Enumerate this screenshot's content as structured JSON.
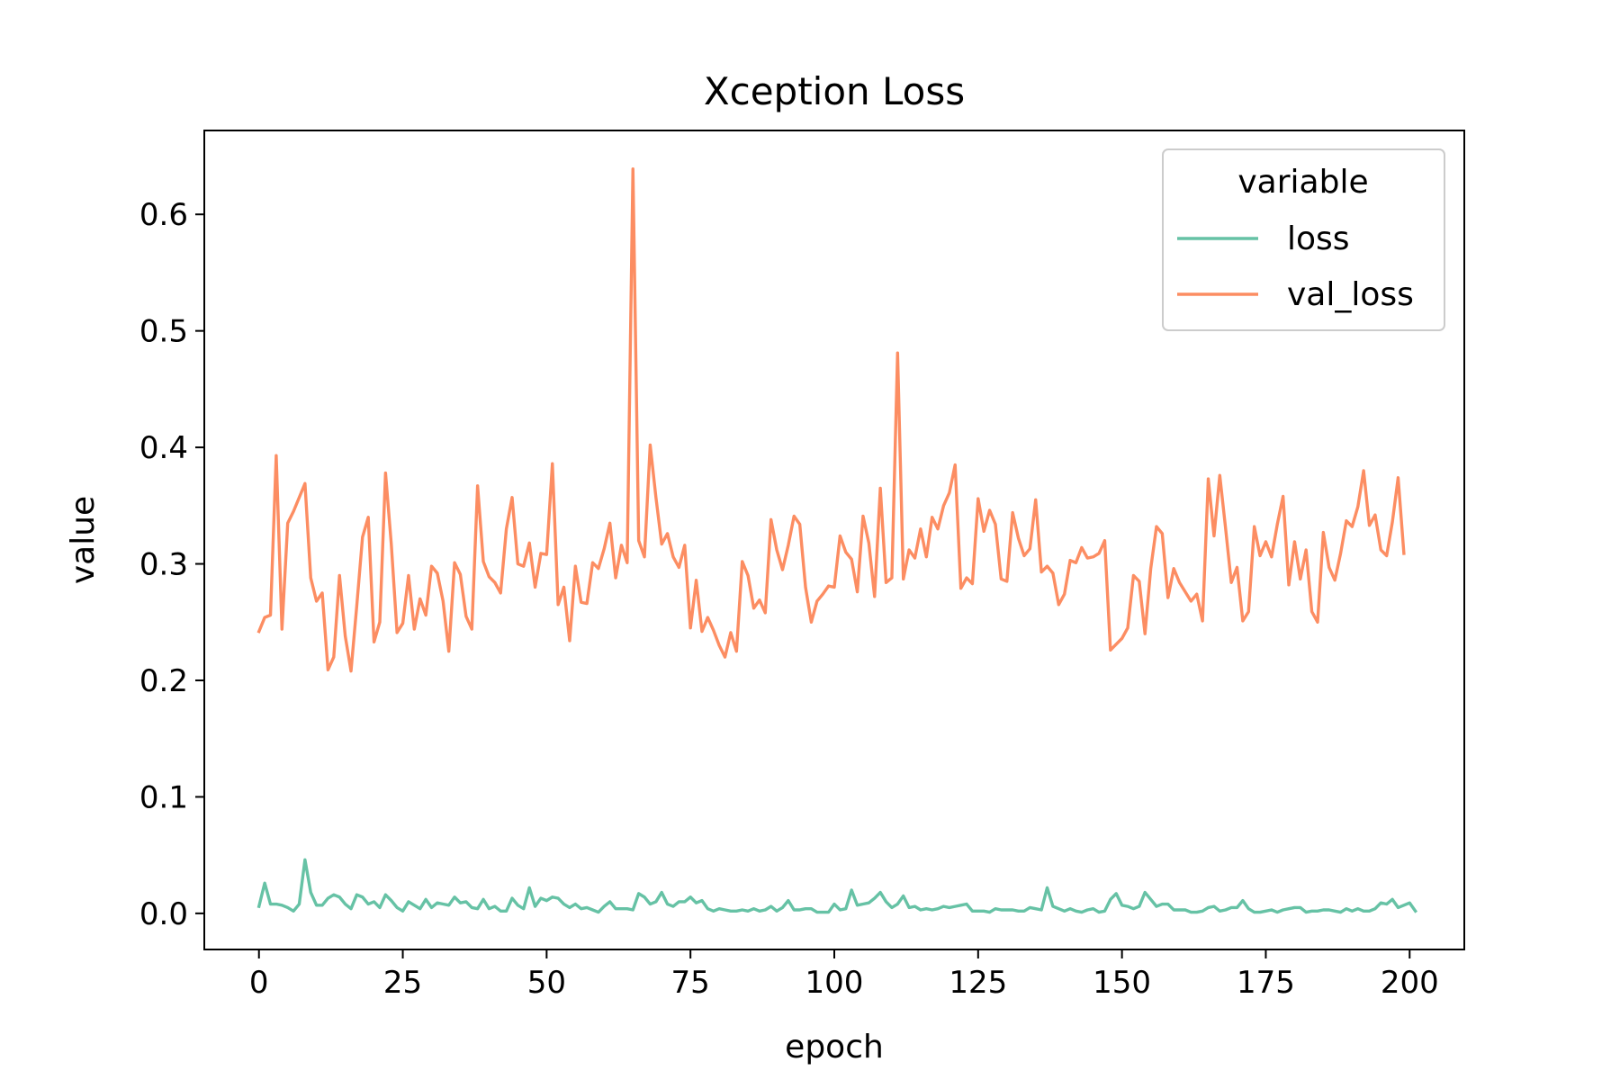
{
  "chart_data": {
    "type": "line",
    "title": "Xception Loss",
    "xlabel": "epoch",
    "ylabel": "value",
    "xlim": [
      -9.5,
      209.5
    ],
    "ylim": [
      -0.031,
      0.672
    ],
    "xticks": [
      0,
      25,
      50,
      75,
      100,
      125,
      150,
      175,
      200
    ],
    "yticks": [
      0.0,
      0.1,
      0.2,
      0.3,
      0.4,
      0.5,
      0.6
    ],
    "ytick_labels": [
      "0.0",
      "0.1",
      "0.2",
      "0.3",
      "0.4",
      "0.5",
      "0.6"
    ],
    "legend": {
      "title": "variable",
      "position": "top-right"
    },
    "series": [
      {
        "name": "loss",
        "color": "#66c2a5",
        "values": [
          0.006,
          0.026,
          0.008,
          0.008,
          0.007,
          0.005,
          0.002,
          0.008,
          0.046,
          0.018,
          0.007,
          0.007,
          0.013,
          0.016,
          0.014,
          0.008,
          0.004,
          0.016,
          0.014,
          0.008,
          0.01,
          0.005,
          0.016,
          0.011,
          0.005,
          0.002,
          0.01,
          0.007,
          0.004,
          0.012,
          0.005,
          0.009,
          0.008,
          0.007,
          0.014,
          0.009,
          0.01,
          0.005,
          0.004,
          0.012,
          0.004,
          0.006,
          0.002,
          0.002,
          0.013,
          0.007,
          0.004,
          0.022,
          0.006,
          0.013,
          0.011,
          0.014,
          0.013,
          0.008,
          0.005,
          0.008,
          0.004,
          0.005,
          0.003,
          0.001,
          0.006,
          0.01,
          0.004,
          0.004,
          0.004,
          0.003,
          0.017,
          0.014,
          0.008,
          0.01,
          0.018,
          0.008,
          0.006,
          0.01,
          0.01,
          0.014,
          0.009,
          0.011,
          0.004,
          0.002,
          0.004,
          0.003,
          0.002,
          0.002,
          0.003,
          0.002,
          0.004,
          0.002,
          0.003,
          0.006,
          0.002,
          0.005,
          0.011,
          0.003,
          0.003,
          0.004,
          0.004,
          0.001,
          0.001,
          0.001,
          0.008,
          0.003,
          0.004,
          0.02,
          0.007,
          0.008,
          0.009,
          0.013,
          0.018,
          0.01,
          0.005,
          0.008,
          0.015,
          0.005,
          0.006,
          0.003,
          0.004,
          0.003,
          0.004,
          0.006,
          0.005,
          0.006,
          0.007,
          0.008,
          0.002,
          0.002,
          0.002,
          0.001,
          0.004,
          0.003,
          0.003,
          0.003,
          0.002,
          0.002,
          0.005,
          0.004,
          0.003,
          0.022,
          0.006,
          0.004,
          0.002,
          0.004,
          0.002,
          0.001,
          0.003,
          0.004,
          0.001,
          0.002,
          0.012,
          0.017,
          0.007,
          0.006,
          0.004,
          0.006,
          0.018,
          0.012,
          0.006,
          0.008,
          0.008,
          0.003,
          0.003,
          0.003,
          0.001,
          0.001,
          0.002,
          0.005,
          0.006,
          0.002,
          0.003,
          0.005,
          0.005,
          0.011,
          0.004,
          0.001,
          0.001,
          0.002,
          0.003,
          0.001,
          0.003,
          0.004,
          0.005,
          0.005,
          0.001,
          0.002,
          0.002,
          0.003,
          0.003,
          0.002,
          0.001,
          0.004,
          0.002,
          0.004,
          0.002,
          0.002,
          0.004,
          0.009,
          0.008,
          0.012,
          0.005,
          0.007,
          0.009,
          0.002
        ]
      },
      {
        "name": "val_loss",
        "color": "#fc8d62",
        "values": [
          0.242,
          0.254,
          0.256,
          0.393,
          0.244,
          0.335,
          0.345,
          0.357,
          0.369,
          0.288,
          0.268,
          0.275,
          0.209,
          0.22,
          0.29,
          0.238,
          0.208,
          0.264,
          0.323,
          0.34,
          0.233,
          0.25,
          0.378,
          0.317,
          0.241,
          0.249,
          0.29,
          0.244,
          0.27,
          0.256,
          0.298,
          0.292,
          0.268,
          0.225,
          0.301,
          0.291,
          0.255,
          0.244,
          0.367,
          0.302,
          0.289,
          0.284,
          0.275,
          0.33,
          0.357,
          0.3,
          0.298,
          0.318,
          0.28,
          0.309,
          0.308,
          0.386,
          0.265,
          0.28,
          0.234,
          0.298,
          0.267,
          0.266,
          0.301,
          0.296,
          0.313,
          0.335,
          0.288,
          0.316,
          0.301,
          0.639,
          0.32,
          0.306,
          0.402,
          0.357,
          0.317,
          0.326,
          0.306,
          0.297,
          0.316,
          0.245,
          0.286,
          0.242,
          0.254,
          0.243,
          0.23,
          0.22,
          0.241,
          0.225,
          0.302,
          0.29,
          0.262,
          0.269,
          0.258,
          0.338,
          0.312,
          0.295,
          0.316,
          0.341,
          0.334,
          0.28,
          0.25,
          0.268,
          0.274,
          0.281,
          0.28,
          0.324,
          0.31,
          0.304,
          0.276,
          0.341,
          0.318,
          0.272,
          0.365,
          0.284,
          0.288,
          0.481,
          0.287,
          0.312,
          0.305,
          0.33,
          0.306,
          0.34,
          0.33,
          0.35,
          0.361,
          0.385,
          0.279,
          0.288,
          0.283,
          0.356,
          0.328,
          0.346,
          0.334,
          0.287,
          0.285,
          0.344,
          0.322,
          0.307,
          0.313,
          0.355,
          0.293,
          0.298,
          0.292,
          0.265,
          0.274,
          0.303,
          0.301,
          0.314,
          0.305,
          0.306,
          0.309,
          0.32,
          0.226,
          0.231,
          0.236,
          0.245,
          0.29,
          0.285,
          0.24,
          0.296,
          0.332,
          0.326,
          0.271,
          0.296,
          0.284,
          0.276,
          0.268,
          0.274,
          0.251,
          0.373,
          0.324,
          0.376,
          0.331,
          0.284,
          0.297,
          0.251,
          0.259,
          0.332,
          0.307,
          0.319,
          0.306,
          0.334,
          0.358,
          0.282,
          0.319,
          0.287,
          0.312,
          0.259,
          0.25,
          0.327,
          0.297,
          0.286,
          0.309,
          0.337,
          0.332,
          0.349,
          0.38,
          0.333,
          0.342,
          0.312,
          0.307,
          0.336,
          0.374,
          0.309
        ]
      }
    ]
  }
}
